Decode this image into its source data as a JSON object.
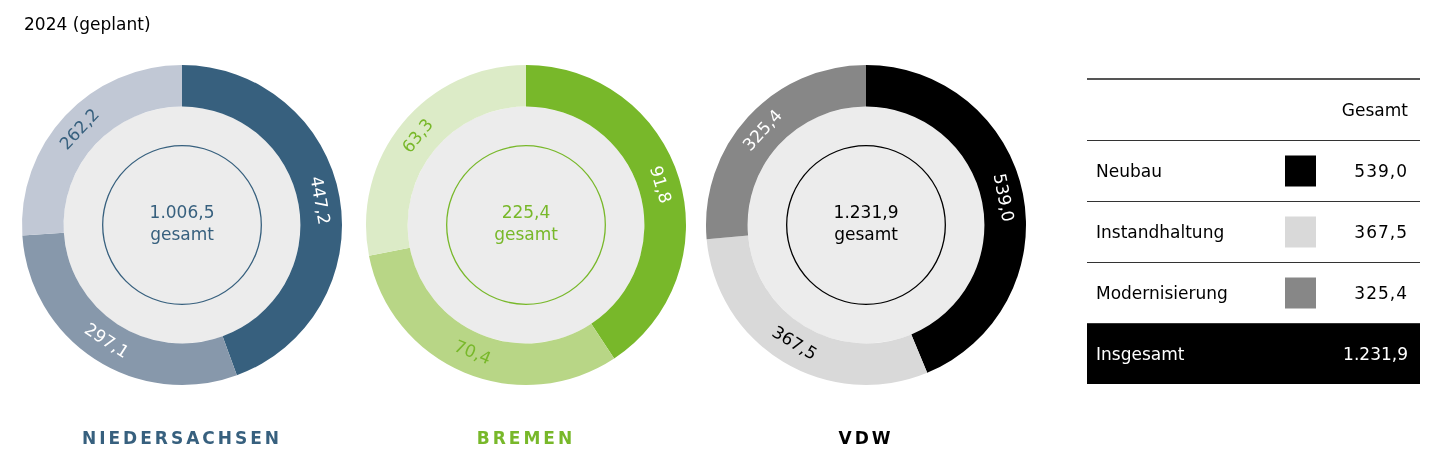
{
  "chart_data": [
    {
      "type": "donut",
      "title": "NIEDERSACHSEN",
      "subtitle": "2024 (geplant)",
      "categories": [
        null,
        null,
        null
      ],
      "values": [
        447.2,
        297.1,
        262.2
      ],
      "value_labels": [
        "447,2",
        "297,1",
        "262,2"
      ],
      "colors": [
        "#37607e",
        "#8798ab",
        "#c1c8d5"
      ],
      "annotations": [
        "1.006,5",
        "gesamt"
      ]
    },
    {
      "type": "donut",
      "title": "BREMEN",
      "categories": [
        null,
        null,
        null
      ],
      "values": [
        91.8,
        70.4,
        63.3
      ],
      "value_labels": [
        "91,8",
        "70,4",
        "63,3"
      ],
      "colors": [
        "#78b82a",
        "#b8d686",
        "#dcebc7"
      ],
      "annotations": [
        "225,4",
        "gesamt"
      ]
    },
    {
      "type": "donut",
      "title": "VDW",
      "categories": [
        null,
        null,
        null
      ],
      "values": [
        539.0,
        367.5,
        325.4
      ],
      "value_labels": [
        "539,0",
        "367,5",
        "325,4"
      ],
      "colors": [
        "#000000",
        "#d9d9d9",
        "#878787"
      ],
      "annotations": [
        "1.231,9",
        "gesamt"
      ]
    },
    {
      "type": "other",
      "title": "Gesamt",
      "categories": [
        "Neubau",
        "Instandhaltung",
        "Modernisierung"
      ],
      "value_labels": [
        "539,0",
        "367,5",
        "325,4"
      ],
      "colors": [
        "#000000",
        "#d9d9d9",
        "#878787"
      ],
      "annotations": [
        "Insgesamt"
      ],
      "totals": [
        "1.231,9"
      ]
    }
  ]
}
